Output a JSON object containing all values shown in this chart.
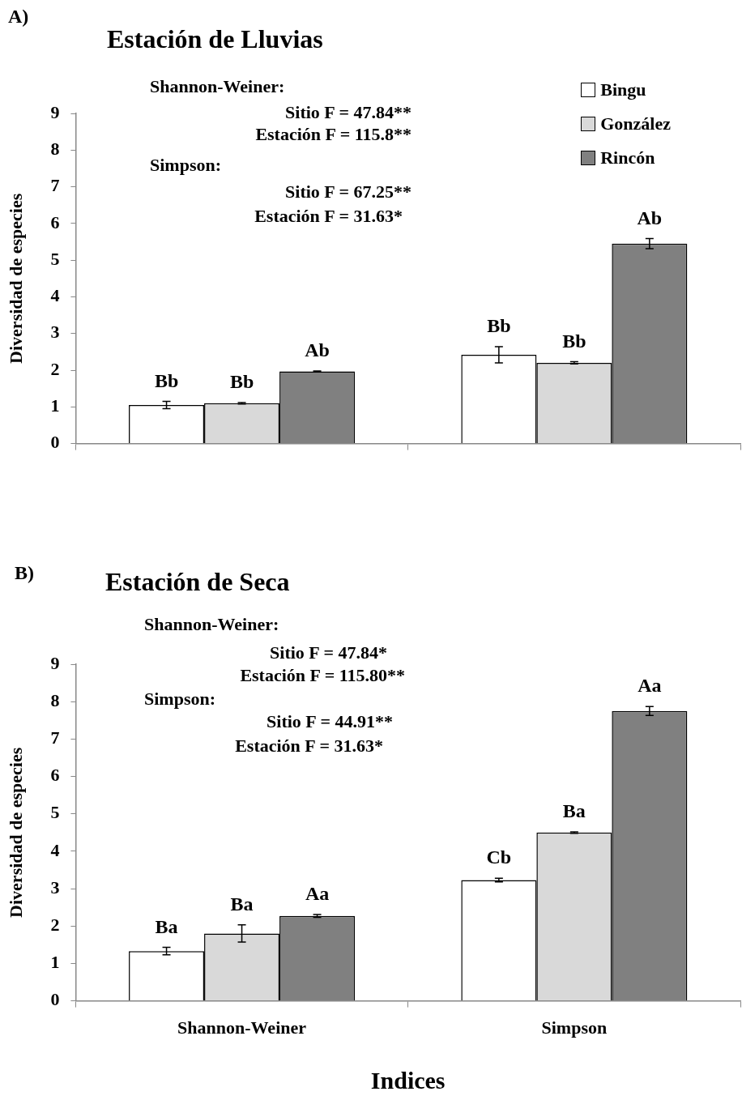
{
  "chart_data": [
    {
      "type": "bar",
      "title": "Estación de Lluvias",
      "ylabel": "Diversidad de especies",
      "annotations": [
        "A)",
        "Shannon-Weiner:",
        "Sitio F = 47.84**",
        "Estación F = 115.8**",
        "Simpson:",
        "Sitio F = 67.25**",
        "Estación F = 31.63*"
      ],
      "categories": [
        null,
        null
      ],
      "series": [
        {
          "name": "Bingu",
          "color": "#ffffff",
          "values": [
            1.05,
            2.42
          ],
          "errors": [
            0.1,
            0.22
          ],
          "value_labels": [
            "Bb",
            "Bb"
          ]
        },
        {
          "name": "González",
          "color": "#d9d9d9",
          "values": [
            1.1,
            2.2
          ],
          "errors": [
            0.02,
            0.03
          ],
          "value_labels": [
            "Bb",
            "Bb"
          ]
        },
        {
          "name": "Rincón",
          "color": "#808080",
          "values": [
            1.97,
            5.45
          ],
          "errors": [
            0.01,
            0.14
          ],
          "value_labels": [
            "Ab",
            "Ab"
          ]
        }
      ],
      "ylim": [
        0,
        9
      ],
      "yticks": [
        0,
        1,
        2,
        3,
        4,
        5,
        6,
        7,
        8,
        9
      ],
      "grid": false,
      "legend": "top right"
    },
    {
      "type": "bar",
      "title": "Estación de Seca",
      "ylabel": "Diversidad de especies",
      "xlabel": "Indices",
      "annotations": [
        "B)",
        "Shannon-Weiner:",
        "Sitio F = 47.84*",
        "Estación F = 115.80**",
        "Simpson:",
        "Sitio F = 44.91**",
        "Estación F = 31.63*"
      ],
      "categories": [
        "Shannon-Weiner",
        "Simpson"
      ],
      "series": [
        {
          "color": "#ffffff",
          "values": [
            1.33,
            3.23
          ],
          "errors": [
            0.1,
            0.05
          ],
          "value_labels": [
            "Ba",
            "Cb"
          ]
        },
        {
          "color": "#d9d9d9",
          "values": [
            1.8,
            4.5
          ],
          "errors": [
            0.23,
            0.02
          ],
          "value_labels": [
            "Ba",
            "Ba"
          ]
        },
        {
          "color": "#808080",
          "values": [
            2.27,
            7.75
          ],
          "errors": [
            0.04,
            0.12
          ],
          "value_labels": [
            "Aa",
            "Aa"
          ]
        }
      ],
      "ylim": [
        0,
        9
      ],
      "yticks": [
        0,
        1,
        2,
        3,
        4,
        5,
        6,
        7,
        8,
        9
      ],
      "grid": false,
      "legend": false
    }
  ]
}
